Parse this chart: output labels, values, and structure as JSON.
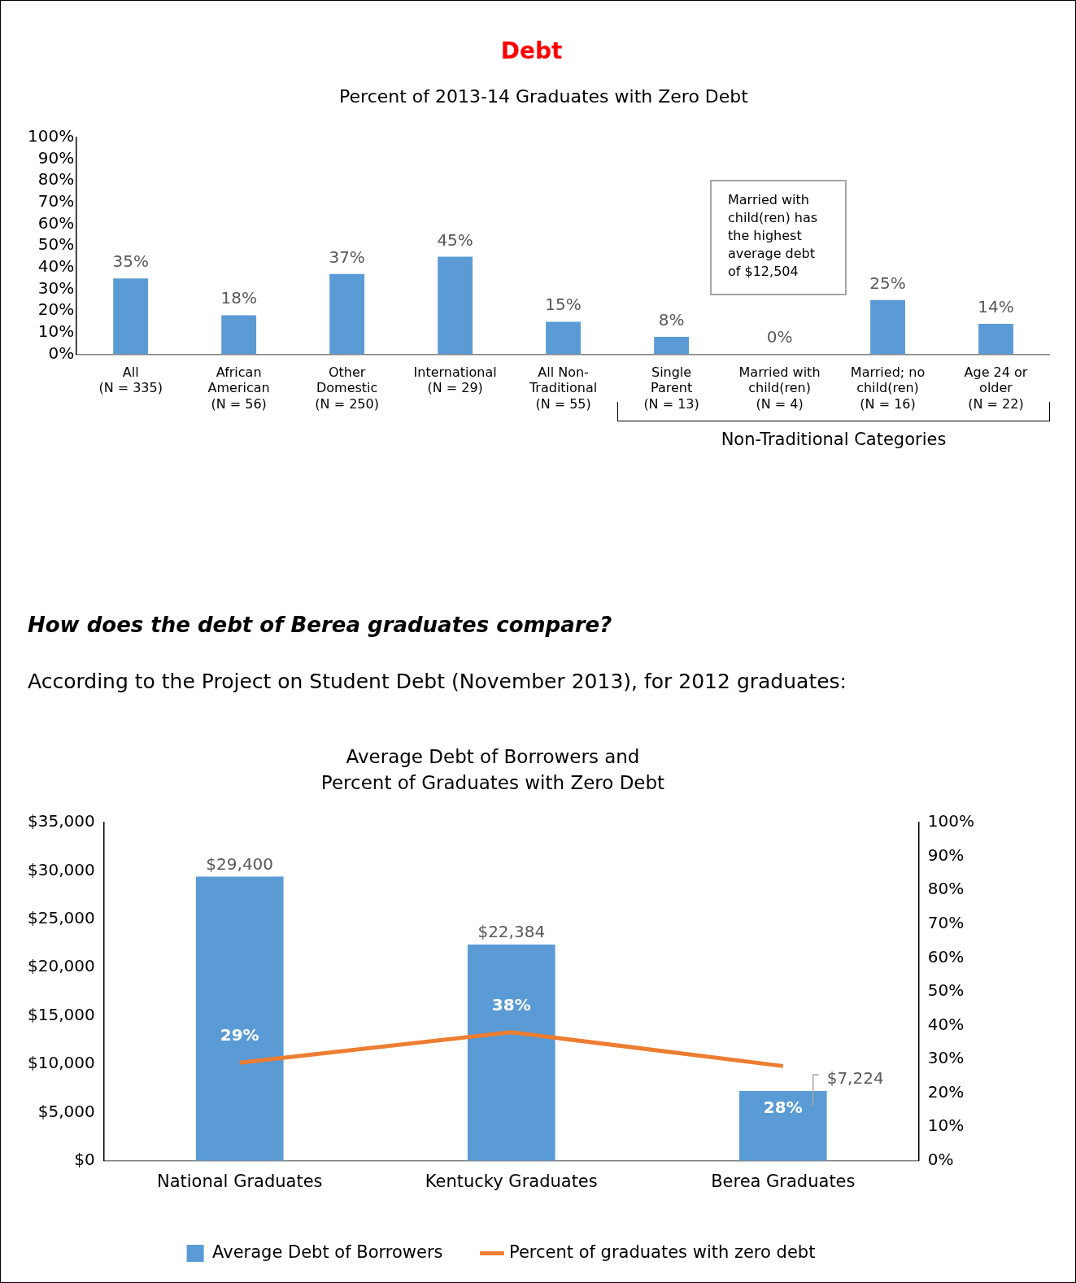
{
  "chart_data": [
    {
      "type": "bar",
      "title": "Percent of 2013-14 Graduates with Zero Debt",
      "categories": [
        "All (N = 335)",
        "African American (N = 56)",
        "Other Domestic (N = 250)",
        "International (N = 29)",
        "All Non-Traditional (N = 55)",
        "Single Parent (N = 13)",
        "Married with child(ren) (N = 4)",
        "Married; no child(ren) (N = 16)",
        "Age 24 or older (N = 22)"
      ],
      "values": [
        35,
        18,
        37,
        45,
        15,
        8,
        0,
        25,
        14
      ],
      "value_labels": [
        "35%",
        "18%",
        "37%",
        "45%",
        "15%",
        "8%",
        "0%",
        "25%",
        "14%"
      ],
      "color": "#5b9bd5",
      "ylim": [
        0,
        100
      ],
      "yticks": [
        {
          "value": 0,
          "label": "0%"
        },
        {
          "value": 10,
          "label": "10%"
        },
        {
          "value": 20,
          "label": "20%"
        },
        {
          "value": 30,
          "label": "30%"
        },
        {
          "value": 40,
          "label": "40%"
        },
        {
          "value": 50,
          "label": "50%"
        },
        {
          "value": 60,
          "label": "60%"
        },
        {
          "value": 70,
          "label": "70%"
        },
        {
          "value": 80,
          "label": "80%"
        },
        {
          "value": 90,
          "label": "90%"
        },
        {
          "value": 100,
          "label": "100%"
        }
      ],
      "grid": false,
      "legend": false,
      "annotations": [
        "Debt",
        "Married with child(ren) has the highest average debt of $12,504",
        "Non-Traditional Categories"
      ]
    },
    {
      "type": "bar",
      "title": "Average Debt of Borrowers and Percent of Graduates with Zero Debt",
      "categories": [
        "National Graduates",
        "Kentucky Graduates",
        "Berea Graduates"
      ],
      "series": [
        {
          "name": "Average Debt of Borrowers",
          "type": "bar",
          "color": "#5b9bd5",
          "values": [
            29400,
            22384,
            7224
          ],
          "value_labels": [
            "$29,400",
            "$22,384",
            "$7,224"
          ]
        },
        {
          "name": "Percent of graduates with zero debt",
          "type": "line",
          "axis": "y2",
          "color": "#ed7d31",
          "values": [
            29,
            38,
            28
          ],
          "value_labels": [
            "29%",
            "38%",
            "28%"
          ]
        }
      ],
      "ylim": [
        0,
        35000
      ],
      "yticks": [
        {
          "value": 0,
          "label": "$0"
        },
        {
          "value": 5000,
          "label": "$5,000"
        },
        {
          "value": 10000,
          "label": "$10,000"
        },
        {
          "value": 15000,
          "label": "$15,000"
        },
        {
          "value": 20000,
          "label": "$20,000"
        },
        {
          "value": 25000,
          "label": "$25,000"
        },
        {
          "value": 30000,
          "label": "$30,000"
        },
        {
          "value": 35000,
          "label": "$35,000"
        }
      ],
      "y2lim": [
        0,
        100
      ],
      "y2ticks": [
        {
          "value": 0,
          "label": "0%"
        },
        {
          "value": 10,
          "label": "10%"
        },
        {
          "value": 20,
          "label": "20%"
        },
        {
          "value": 30,
          "label": "30%"
        },
        {
          "value": 40,
          "label": "40%"
        },
        {
          "value": 50,
          "label": "50%"
        },
        {
          "value": 60,
          "label": "60%"
        },
        {
          "value": 70,
          "label": "70%"
        },
        {
          "value": 80,
          "label": "80%"
        },
        {
          "value": 90,
          "label": "90%"
        },
        {
          "value": 100,
          "label": "100%"
        }
      ],
      "grid": false,
      "legend": "bottom",
      "marker": "none",
      "annotations": [
        "How does the debt of Berea graduates compare?",
        "According to the Project on Student Debt (November 2013), for 2012 graduates:"
      ]
    }
  ]
}
